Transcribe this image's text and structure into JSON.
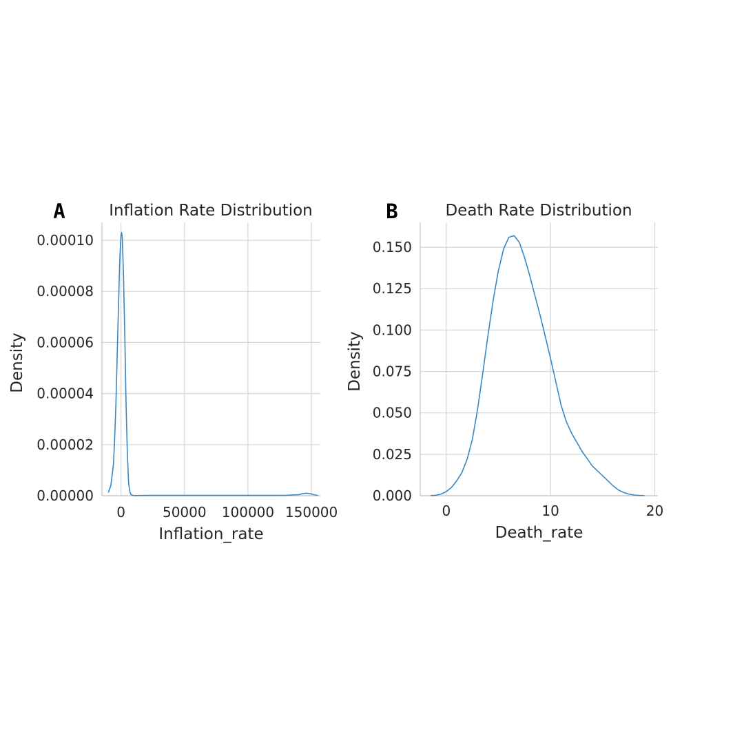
{
  "chart_data": [
    {
      "panel_label": "A",
      "type": "line",
      "title": "Inflation Rate Distribution",
      "xlabel": "Inflation_rate",
      "ylabel": "Density",
      "xlim": [
        -15000,
        157000
      ],
      "ylim": [
        0,
        0.000107
      ],
      "grid": true,
      "xticks": [
        0,
        50000,
        100000,
        150000
      ],
      "xtick_labels": [
        "0",
        "50000",
        "100000",
        "150000"
      ],
      "yticks": [
        0,
        2e-05,
        4e-05,
        6e-05,
        8e-05,
        0.0001
      ],
      "ytick_labels": [
        "0.00000",
        "0.00002",
        "0.00004",
        "0.00006",
        "0.00008",
        "0.00010"
      ],
      "series": [
        {
          "color": "#3a87c2",
          "x": [
            -10000,
            -8000,
            -6000,
            -5000,
            -4000,
            -3000,
            -2000,
            -1000,
            0,
            500,
            1000,
            2000,
            3000,
            4000,
            5000,
            6000,
            7000,
            8000,
            10000,
            20000,
            60000,
            100000,
            130000,
            140000,
            143000,
            146000,
            149000,
            152000,
            155000
          ],
          "y": [
            1.2e-06,
            4e-06,
            1.2e-05,
            2.2e-05,
            3.6e-05,
            5.5e-05,
            7.4e-05,
            9.2e-05,
            0.000102,
            0.000103,
            0.000101,
            8.6e-05,
            6.2e-05,
            3.6e-05,
            1.6e-05,
            5e-06,
            1.5e-06,
            4e-07,
            5e-08,
            1e-07,
            1e-07,
            1e-07,
            1.5e-07,
            4e-07,
            8e-07,
            1e-06,
            8e-07,
            4e-07,
            1e-07
          ]
        }
      ]
    },
    {
      "panel_label": "B",
      "type": "line",
      "title": "Death Rate Distribution",
      "xlabel": "Death_rate",
      "ylabel": "Density",
      "xlim": [
        -2.5,
        20.3
      ],
      "ylim": [
        0,
        0.165
      ],
      "grid": true,
      "xticks": [
        0,
        10,
        20
      ],
      "xtick_labels": [
        "0",
        "10",
        "20"
      ],
      "yticks": [
        0,
        0.025,
        0.05,
        0.075,
        0.1,
        0.125,
        0.15
      ],
      "ytick_labels": [
        "0.000",
        "0.025",
        "0.050",
        "0.075",
        "0.100",
        "0.125",
        "0.150"
      ],
      "series": [
        {
          "color": "#3a87c2",
          "x": [
            -1.5,
            -1,
            -0.5,
            0,
            0.5,
            1,
            1.5,
            2,
            2.5,
            3,
            3.5,
            4,
            4.5,
            5,
            5.5,
            6,
            6.5,
            7,
            7.5,
            8,
            8.5,
            9,
            9.5,
            10,
            10.5,
            11,
            11.5,
            12,
            13,
            14,
            15,
            15.5,
            16,
            16.5,
            17,
            17.5,
            18,
            18.5,
            19
          ],
          "y": [
            0.0001,
            0.0003,
            0.001,
            0.0025,
            0.005,
            0.009,
            0.014,
            0.022,
            0.034,
            0.052,
            0.074,
            0.097,
            0.118,
            0.136,
            0.149,
            0.156,
            0.157,
            0.153,
            0.144,
            0.133,
            0.121,
            0.109,
            0.096,
            0.083,
            0.069,
            0.055,
            0.045,
            0.038,
            0.027,
            0.018,
            0.012,
            0.009,
            0.006,
            0.0035,
            0.002,
            0.001,
            0.0004,
            0.0002,
            0.0001
          ]
        }
      ]
    }
  ]
}
